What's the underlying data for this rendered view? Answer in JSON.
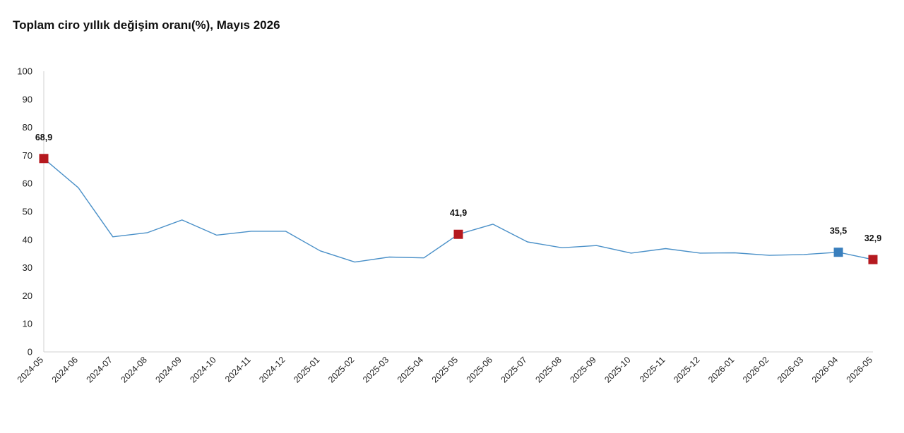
{
  "chart_data": {
    "type": "line",
    "title": "Toplam ciro yıllık değişim oranı(%), Mayıs 2026",
    "xlabel": "",
    "ylabel": "",
    "ylim": [
      0,
      100
    ],
    "yticks": [
      "0",
      "10",
      "20",
      "30",
      "40",
      "50",
      "60",
      "70",
      "80",
      "90",
      "100"
    ],
    "grid": false,
    "categories": [
      "2024-05",
      "2024-06",
      "2024-07",
      "2024-08",
      "2024-09",
      "2024-10",
      "2024-11",
      "2024-12",
      "2025-01",
      "2025-02",
      "2025-03",
      "2025-04",
      "2025-05",
      "2025-06",
      "2025-07",
      "2025-08",
      "2025-09",
      "2025-10",
      "2025-11",
      "2025-12",
      "2026-01",
      "2026-02",
      "2026-03",
      "2026-04",
      "2026-05"
    ],
    "series": [
      {
        "color": "#4a90c8",
        "values": [
          68.9,
          58.5,
          41.0,
          42.5,
          47.0,
          41.6,
          43.0,
          43.0,
          36.0,
          32.0,
          33.8,
          33.5,
          41.9,
          45.5,
          39.2,
          37.1,
          37.9,
          35.2,
          36.8,
          35.2,
          35.3,
          34.4,
          34.7,
          35.5,
          32.9
        ]
      }
    ],
    "highlights": [
      {
        "category": "2024-05",
        "value": 68.9,
        "label": "68,9",
        "color": "#b5191f"
      },
      {
        "category": "2025-05",
        "value": 41.9,
        "label": "41,9",
        "color": "#b5191f"
      },
      {
        "category": "2026-04",
        "value": 35.5,
        "label": "35,5",
        "color": "#3a7fbd"
      },
      {
        "category": "2026-05",
        "value": 32.9,
        "label": "32,9",
        "color": "#b5191f"
      }
    ]
  }
}
